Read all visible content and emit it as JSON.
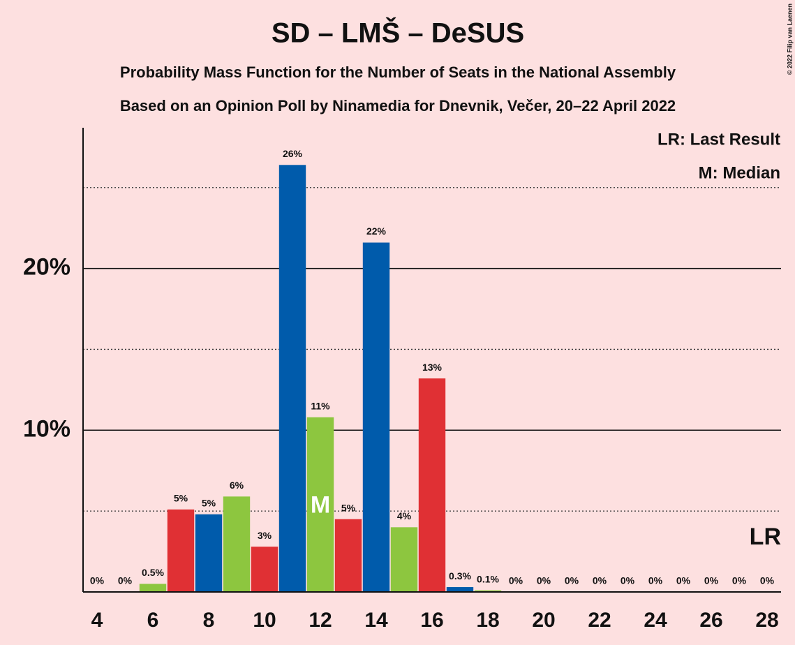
{
  "chart_data": {
    "type": "bar",
    "title": "SD – LMŠ – DeSUS",
    "subtitle": "Probability Mass Function for the Number of Seats in the National Assembly",
    "subtitle2": "Based on an Opinion Poll by Ninamedia for Dnevnik, Večer, 20–22 April 2022",
    "copyright": "© 2022 Filip van Laenen",
    "legend": [
      "LR: Last Result",
      "M: Median"
    ],
    "x": [
      4,
      5,
      6,
      7,
      8,
      9,
      10,
      11,
      12,
      13,
      14,
      15,
      16,
      17,
      18,
      19,
      20,
      21,
      22,
      23,
      24,
      25,
      26,
      27,
      28
    ],
    "values": [
      0,
      0,
      0.5,
      5.1,
      4.8,
      5.9,
      2.8,
      26.4,
      10.8,
      4.5,
      21.6,
      4.0,
      13.2,
      0.3,
      0.1,
      0,
      0,
      0,
      0,
      0,
      0,
      0,
      0,
      0,
      0
    ],
    "value_labels": [
      "0%",
      "0%",
      "0.5%",
      "5%",
      "5%",
      "6%",
      "3%",
      "26%",
      "11%",
      "5%",
      "22%",
      "4%",
      "13%",
      "0.3%",
      "0.1%",
      "0%",
      "0%",
      "0%",
      "0%",
      "0%",
      "0%",
      "0%",
      "0%",
      "0%",
      "0%"
    ],
    "colors": [
      "#e03034",
      "#005bab",
      "#8dc63f"
    ],
    "xlim": [
      3.5,
      28.5
    ],
    "xticks": [
      4,
      6,
      8,
      10,
      12,
      14,
      16,
      18,
      20,
      22,
      24,
      26,
      28
    ],
    "ylim": [
      0,
      28.7
    ],
    "yticks": [
      {
        "value": 10,
        "label": "10%"
      },
      {
        "value": 20,
        "label": "20%"
      }
    ],
    "minor_grid": [
      5,
      15,
      25
    ],
    "median_x": 12,
    "median_label": "M",
    "last_result_x": 28,
    "last_result_label": "LR"
  }
}
